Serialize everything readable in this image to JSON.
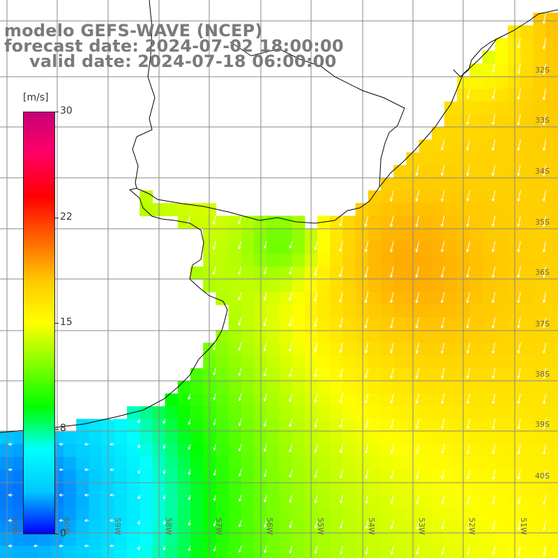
{
  "title": {
    "line1": "modelo GEFS-WAVE (NCEP)",
    "line2": "forecast date: 2024-07-02 18:00:00",
    "line3": "valid date: 2024-07-18 06:00:00"
  },
  "colorbar": {
    "unit": "[m/s]",
    "ticks": [
      "30",
      "22",
      "15",
      "8",
      "0"
    ],
    "min": 0,
    "max": 30,
    "colors": [
      "#0000ff",
      "#00c8ff",
      "#00ffff",
      "#00ff00",
      "#80ff00",
      "#ffff00",
      "#ffc800",
      "#ff6400",
      "#ff0000",
      "#ff0064",
      "#c80078"
    ]
  },
  "lat_labels": [
    "32S",
    "33S",
    "34S",
    "35S",
    "36S",
    "37S",
    "38S",
    "39S",
    "40S"
  ],
  "lon_labels": [
    "61W",
    "60W",
    "59W",
    "58W",
    "57W",
    "56W",
    "55W",
    "54W",
    "53W",
    "52W",
    "51W"
  ],
  "map_style": {
    "land_color": "#ffffff",
    "grid_color": "#888888",
    "coast_color": "#000000",
    "arrow_color": "#ffffff"
  }
}
